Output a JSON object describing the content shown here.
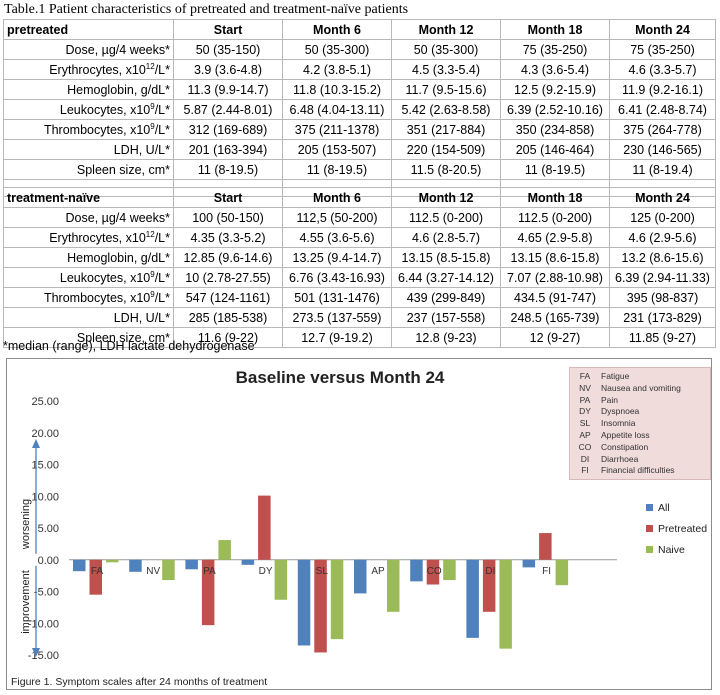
{
  "table": {
    "caption": "Table.1 Patient characteristics of pretreated and treatment-naïve  patients",
    "columns": [
      "Start",
      "Month 6",
      "Month 12",
      "Month 18",
      "Month 24"
    ],
    "groups": [
      {
        "name": "pretreated",
        "rows": [
          {
            "label": "Dose, µg/4 weeks*",
            "values": [
              "50 (35-150)",
              "50 (35-300)",
              "50 (35-300)",
              "75 (35-250)",
              "75 (35-250)"
            ]
          },
          {
            "label": "Erythrocytes, x10",
            "exp": "12",
            "unit": "/L*",
            "values": [
              "3.9 (3.6-4.8)",
              "4.2 (3.8-5.1)",
              "4.5 (3.3-5.4)",
              "4.3 (3.6-5.4)",
              "4.6 (3.3-5.7)"
            ]
          },
          {
            "label": "Hemoglobin, g/dL*",
            "values": [
              "11.3 (9.9-14.7)",
              "11.8 (10.3-15.2)",
              "11.7 (9.5-15.6)",
              "12.5 (9.2-15.9)",
              "11.9 (9.2-16.1)"
            ]
          },
          {
            "label": "Leukocytes, x10",
            "exp": "9",
            "unit": "/L*",
            "values": [
              "5.87 (2.44-8.01)",
              "6.48 (4.04-13.11)",
              "5.42 (2.63-8.58)",
              "6.39 (2.52-10.16)",
              "6.41 (2.48-8.74)"
            ]
          },
          {
            "label": "Thrombocytes, x10",
            "exp": "9",
            "unit": "/L*",
            "values": [
              "312 (169-689)",
              "375 (211-1378)",
              "351 (217-884)",
              "350 (234-858)",
              "375 (264-778)"
            ]
          },
          {
            "label": "LDH, U/L*",
            "values": [
              "201 (163-394)",
              "205 (153-507)",
              "220 (154-509)",
              "205 (146-464)",
              "230 (146-565)"
            ]
          },
          {
            "label": "Spleen size, cm*",
            "values": [
              "11 (8-19.5)",
              "11 (8-19.5)",
              "11.5 (8-20.5)",
              "11 (8-19.5)",
              "11 (8-19.4)"
            ]
          }
        ]
      },
      {
        "name": "treatment-naïve",
        "rows": [
          {
            "label": "Dose, µg/4 weeks*",
            "values": [
              "100 (50-150)",
              "112,5 (50-200)",
              "112.5 (0-200)",
              "112.5 (0-200)",
              "125 (0-200)"
            ]
          },
          {
            "label": "Erythrocytes, x10",
            "exp": "12",
            "unit": "/L*",
            "values": [
              "4.35 (3.3-5.2)",
              "4.55 (3.6-5.6)",
              "4.6 (2.8-5.7)",
              "4.65 (2.9-5.8)",
              "4.6 (2.9-5.6)"
            ]
          },
          {
            "label": "Hemoglobin, g/dL*",
            "values": [
              "12.85 (9.6-14.6)",
              "13.25 (9.4-14.7)",
              "13.15 (8.5-15.8)",
              "13.15 (8.6-15.8)",
              "13.2 (8.6-15.6)"
            ]
          },
          {
            "label": "Leukocytes, x10",
            "exp": "9",
            "unit": "/L*",
            "values": [
              "10 (2.78-27.55)",
              "6.76 (3.43-16.93)",
              "6.44 (3.27-14.12)",
              "7.07 (2.88-10.98)",
              "6.39 (2.94-11.33)"
            ]
          },
          {
            "label": "Thrombocytes, x10",
            "exp": "9",
            "unit": "/L*",
            "values": [
              "547 (124-1161)",
              "501 (131-1476)",
              "439 (299-849)",
              "434.5 (91-747)",
              "395 (98-837)"
            ]
          },
          {
            "label": "LDH, U/L*",
            "values": [
              "285 (185-538)",
              "273.5 (137-559)",
              "237 (157-558)",
              "248.5 (165-739)",
              "231 (173-829)"
            ]
          },
          {
            "label": "Spleen size, cm*",
            "values": [
              "11.6 (9-22)",
              "12.7 (9-19.2)",
              "12.8 (9-23)",
              "12 (9-27)",
              "11.85 (9-27)"
            ]
          }
        ]
      }
    ],
    "footnote": "*median (range), LDH lactate dehydrogenase"
  },
  "abbreviations": [
    {
      "abbr": "FA",
      "name": "Fatigue"
    },
    {
      "abbr": "NV",
      "name": "Nausea and vomiting"
    },
    {
      "abbr": "PA",
      "name": "Pain"
    },
    {
      "abbr": "DY",
      "name": "Dyspnoea"
    },
    {
      "abbr": "SL",
      "name": "Insomnia"
    },
    {
      "abbr": "AP",
      "name": "Appetite loss"
    },
    {
      "abbr": "CO",
      "name": "Constipation"
    },
    {
      "abbr": "DI",
      "name": "Diarrhoea"
    },
    {
      "abbr": "FI",
      "name": "Financial difficulties"
    }
  ],
  "chart_data": {
    "type": "bar",
    "title": "Baseline versus Month 24",
    "categories": [
      "FA",
      "NV",
      "PA",
      "DY",
      "SL",
      "AP",
      "CO",
      "DI",
      "FI"
    ],
    "series": [
      {
        "name": "All",
        "color": "#4f81bd",
        "values": [
          -1.8,
          -1.9,
          -1.5,
          -0.8,
          -13.5,
          -5.3,
          -3.4,
          -12.3,
          -1.2
        ]
      },
      {
        "name": "Pretreated",
        "color": "#c0504d",
        "values": [
          -5.5,
          0.0,
          -10.3,
          10.1,
          -14.6,
          0.0,
          -3.9,
          -8.2,
          4.2
        ]
      },
      {
        "name": "Naive",
        "color": "#9bbb59",
        "values": [
          -0.4,
          -3.2,
          3.1,
          -6.3,
          -12.5,
          -8.2,
          -3.2,
          -14.0,
          -4.0
        ]
      }
    ],
    "ylim": [
      -15,
      25
    ],
    "yticks": [
      "25.00",
      "20.00",
      "15.00",
      "10.00",
      "5.00",
      "0.00",
      "-5.00",
      "-10.00",
      "-15.00"
    ],
    "ytick_values": [
      25,
      20,
      15,
      10,
      5,
      0,
      -5,
      -10,
      -15
    ],
    "annotations": {
      "up": "worsening",
      "down": "improvement"
    },
    "legend_position": "right",
    "caption": "Figure 1. Symptom scales after 24 months of treatment"
  }
}
